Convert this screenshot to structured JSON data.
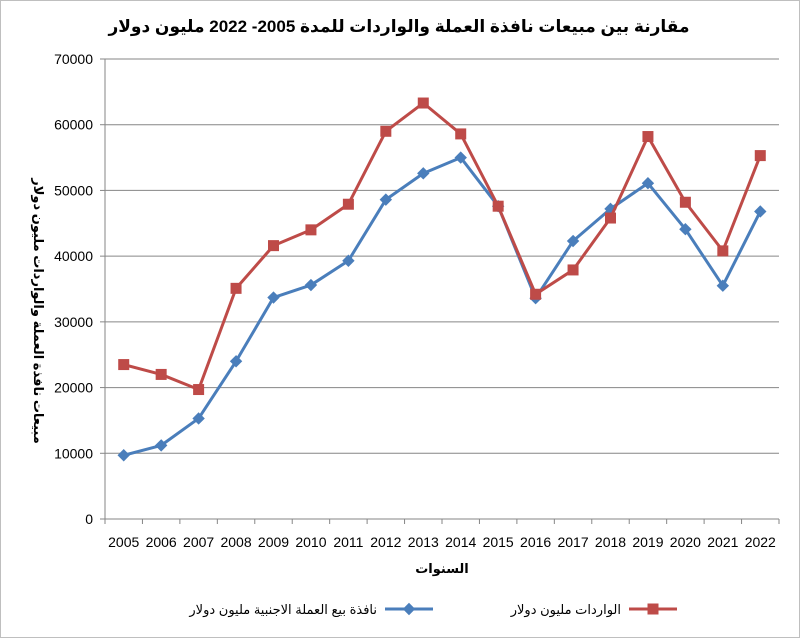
{
  "chart_data": {
    "type": "line",
    "title": "مقارنة بين مبيعات نافذة العملة والواردات للمدة 2005- 2022 مليون دولار",
    "xlabel": "السنوات",
    "ylabel": "مبيعات نافذة العملة والواردات مليون دولار",
    "ylim": [
      0,
      70000
    ],
    "yticks": [
      "0",
      "10000",
      "20000",
      "30000",
      "40000",
      "50000",
      "60000",
      "70000"
    ],
    "grid": true,
    "legend_position": "bottom",
    "categories": [
      "2005",
      "2006",
      "2007",
      "2008",
      "2009",
      "2010",
      "2011",
      "2012",
      "2013",
      "2014",
      "2015",
      "2016",
      "2017",
      "2018",
      "2019",
      "2020",
      "2021",
      "2022"
    ],
    "series": [
      {
        "name": "نافذة بيع العملة الاجنبية مليون دولار",
        "color": "#4a7ebb",
        "marker": "diamond",
        "values": [
          9700,
          11200,
          15300,
          24000,
          33700,
          35600,
          39300,
          48600,
          52600,
          55000,
          47600,
          33600,
          42300,
          47200,
          51100,
          44100,
          35500,
          46800
        ]
      },
      {
        "name": "الواردات مليون دولار",
        "color": "#be4b48",
        "marker": "square",
        "values": [
          23500,
          22000,
          19700,
          35100,
          41600,
          44000,
          47900,
          59000,
          63300,
          58600,
          47600,
          34200,
          37900,
          45800,
          58200,
          48200,
          40800,
          55300
        ]
      }
    ]
  }
}
